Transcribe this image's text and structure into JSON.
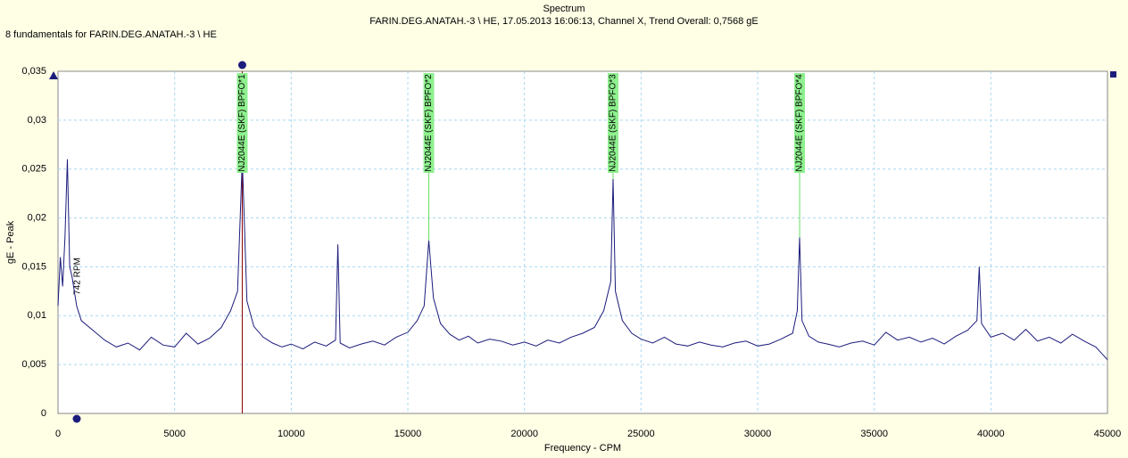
{
  "chart_data": {
    "type": "line",
    "title": "Spectrum",
    "subtitle": "FARIN.DEG.ANATAH.-3 \\ HE, 17.05.2013 16:06:13, Channel X, Trend Overall: 0,7568 gE",
    "caption": "8 fundamentals for FARIN.DEG.ANATAH.-3 \\ HE",
    "ylabel": "gE - Peak",
    "xlabel": "Frequency - CPM",
    "annotation": "742 RPM",
    "xlim": [
      0,
      45000
    ],
    "ylim": [
      0,
      0.035
    ],
    "xticks": [
      0,
      5000,
      10000,
      15000,
      20000,
      25000,
      30000,
      35000,
      40000,
      45000
    ],
    "yticks": [
      0,
      {
        "value": 0.005,
        "label": "0,005"
      },
      {
        "value": 0.01,
        "label": "0,01"
      },
      {
        "value": 0.015,
        "label": "0,015"
      },
      {
        "value": 0.02,
        "label": "0,02"
      },
      {
        "value": 0.025,
        "label": "0,025"
      },
      {
        "value": 0.03,
        "label": "0,03"
      },
      {
        "value": 0.035,
        "label": "0,035"
      }
    ],
    "grid": true,
    "cursor_x": 7900,
    "markers": [
      {
        "x": 7900,
        "y": 0.026,
        "label": "NJ2044E (SKF) BPFO*1"
      },
      {
        "x": 15900,
        "y": 0.0177,
        "label": "NJ2044E (SKF) BPFO*2"
      },
      {
        "x": 23800,
        "y": 0.024,
        "label": "NJ2044E (SKF) BPFO*3"
      },
      {
        "x": 31800,
        "y": 0.018,
        "label": "NJ2044E (SKF) BPFO*4"
      }
    ],
    "x": [
      0,
      100,
      200,
      300,
      400,
      500,
      600,
      800,
      1000,
      1500,
      2000,
      2500,
      3000,
      3500,
      4000,
      4500,
      5000,
      5500,
      6000,
      6500,
      7000,
      7400,
      7700,
      7900,
      8100,
      8400,
      8800,
      9200,
      9600,
      10000,
      10500,
      11000,
      11500,
      11900,
      12000,
      12100,
      12500,
      13000,
      13500,
      14000,
      14500,
      15000,
      15400,
      15700,
      15900,
      16100,
      16400,
      16800,
      17200,
      17600,
      18000,
      18500,
      19000,
      19500,
      20000,
      20500,
      21000,
      21500,
      22000,
      22500,
      23000,
      23400,
      23700,
      23800,
      23900,
      24200,
      24600,
      25000,
      25500,
      26000,
      26500,
      27000,
      27500,
      28000,
      28500,
      29000,
      29500,
      30000,
      30500,
      31000,
      31500,
      31700,
      31800,
      31900,
      32200,
      32600,
      33000,
      33500,
      34000,
      34500,
      35000,
      35500,
      36000,
      36500,
      37000,
      37500,
      38000,
      38500,
      39000,
      39400,
      39500,
      39600,
      40000,
      40500,
      41000,
      41500,
      42000,
      42500,
      43000,
      43500,
      44000,
      44500,
      45000
    ],
    "series": [
      {
        "name": "Spectrum",
        "color": "#1c1c7c",
        "values": [
          0.011,
          0.016,
          0.013,
          0.018,
          0.026,
          0.015,
          0.014,
          0.011,
          0.0095,
          0.0085,
          0.0075,
          0.0068,
          0.0072,
          0.0065,
          0.0078,
          0.007,
          0.0068,
          0.0082,
          0.0071,
          0.0077,
          0.0088,
          0.0105,
          0.0125,
          0.026,
          0.0115,
          0.0089,
          0.0078,
          0.0072,
          0.0068,
          0.0071,
          0.0066,
          0.0073,
          0.0069,
          0.0075,
          0.0173,
          0.0072,
          0.0067,
          0.0071,
          0.0074,
          0.007,
          0.0078,
          0.0083,
          0.0095,
          0.011,
          0.0177,
          0.0118,
          0.0092,
          0.0081,
          0.0075,
          0.0079,
          0.0072,
          0.0076,
          0.0074,
          0.007,
          0.0073,
          0.0069,
          0.0075,
          0.0072,
          0.0078,
          0.0082,
          0.0088,
          0.0105,
          0.0135,
          0.024,
          0.0125,
          0.0095,
          0.0082,
          0.0076,
          0.0072,
          0.0078,
          0.0071,
          0.0069,
          0.0073,
          0.007,
          0.0068,
          0.0072,
          0.0074,
          0.0069,
          0.0071,
          0.0076,
          0.0082,
          0.0105,
          0.018,
          0.0095,
          0.0079,
          0.0073,
          0.0071,
          0.0068,
          0.0072,
          0.0074,
          0.007,
          0.0083,
          0.0075,
          0.0078,
          0.0073,
          0.0077,
          0.0071,
          0.0079,
          0.0085,
          0.0095,
          0.015,
          0.0092,
          0.0078,
          0.0082,
          0.0075,
          0.0086,
          0.0074,
          0.0078,
          0.0072,
          0.0081,
          0.0074,
          0.0068,
          0.0055
        ]
      }
    ]
  }
}
